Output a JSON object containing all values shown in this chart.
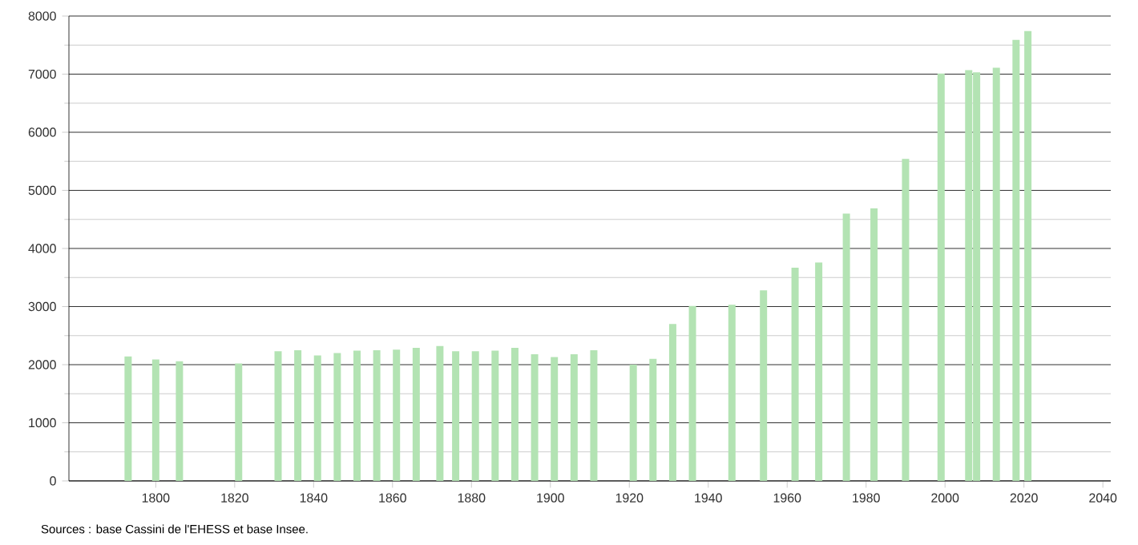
{
  "chart_data": {
    "type": "bar",
    "x": [
      1793,
      1800,
      1806,
      1821,
      1831,
      1836,
      1841,
      1846,
      1851,
      1856,
      1861,
      1866,
      1872,
      1876,
      1881,
      1886,
      1891,
      1896,
      1901,
      1906,
      1911,
      1921,
      1926,
      1931,
      1936,
      1946,
      1954,
      1962,
      1968,
      1975,
      1982,
      1990,
      1999,
      2006,
      2008,
      2013,
      2018,
      2021
    ],
    "values": [
      2140,
      2090,
      2060,
      2020,
      2230,
      2250,
      2160,
      2200,
      2240,
      2250,
      2260,
      2290,
      2320,
      2230,
      2230,
      2240,
      2290,
      2180,
      2130,
      2180,
      2250,
      2000,
      2100,
      2700,
      3010,
      3030,
      3280,
      3670,
      3760,
      4600,
      4690,
      5540,
      7010,
      7070,
      7030,
      7110,
      7590,
      7740
    ],
    "color": "#b3e3b3",
    "xlim": [
      1778,
      2042
    ],
    "xticks": [
      1800,
      1820,
      1840,
      1860,
      1880,
      1900,
      1920,
      1940,
      1960,
      1980,
      2000,
      2020,
      2040
    ],
    "ylim": [
      0,
      8000
    ],
    "yticks": [
      0,
      1000,
      2000,
      3000,
      4000,
      5000,
      6000,
      7000,
      8000
    ],
    "grid": "y",
    "annotations": [
      "Sources : base Cassini de l'EHESS et base Insee."
    ]
  }
}
